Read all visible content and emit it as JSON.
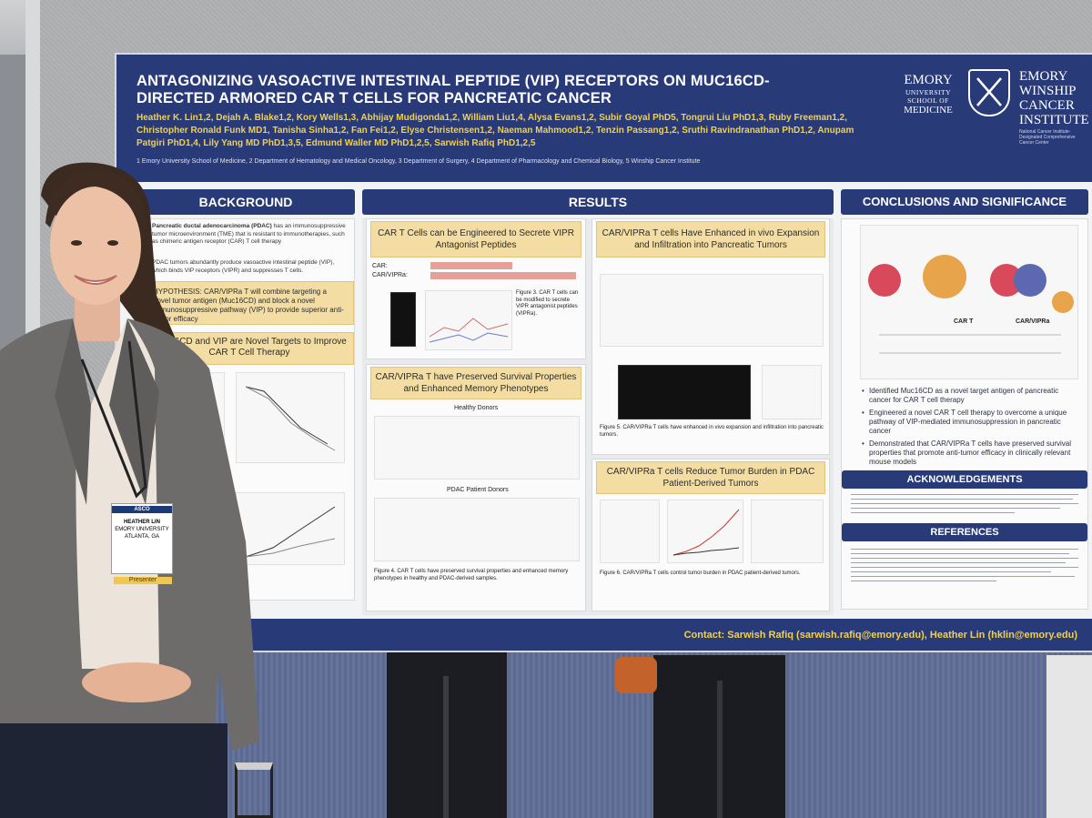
{
  "poster": {
    "title": "ANTAGONIZING VASOACTIVE INTESTINAL PEPTIDE (VIP) RECEPTORS ON MUC16CD-DIRECTED ARMORED CAR T CELLS FOR PANCREATIC CANCER",
    "authors": "Heather K. Lin1,2, Dejah A. Blake1,2, Kory Wells1,3, Abhijay Mudigonda1,2, William Liu1,4, Alysa Evans1,2, Subir Goyal PhD5, Tongrui Liu PhD1,3, Ruby Freeman1,2, Christopher Ronald Funk MD1, Tanisha Sinha1,2, Fan Fei1,2, Elyse Christensen1,2, Naeman Mahmood1,2, Tenzin Passang1,2, Sruthi Ravindranathan PhD1,2, Anupam Patgiri PhD1,4, Lily Yang MD PhD1,3,5, Edmund Waller MD PhD1,2,5, Sarwish Rafiq PhD1,2,5",
    "affiliations": "1 Emory University School of Medicine, 2 Department of Hematology and Medical Oncology, 3 Department of Surgery, 4 Department of Pharmacology and Chemical Biology, 5 Winship Cancer Institute",
    "logo_left": {
      "line1": "EMORY",
      "line2": "UNIVERSITY",
      "line3": "SCHOOL OF",
      "line4": "MEDICINE"
    },
    "logo_right": {
      "line1": "EMORY",
      "line2": "WINSHIP",
      "line3": "CANCER",
      "line4": "INSTITUTE",
      "tagline": "National Cancer Institute-Designated Comprehensive Cancer Center"
    },
    "sections": {
      "background": "BACKGROUND",
      "results": "RESULTS",
      "conclusions": "CONCLUSIONS AND SIGNIFICANCE",
      "acknowledgements": "ACKNOWLEDGEMENTS",
      "references": "REFERENCES"
    },
    "background": {
      "para1_bold": "Pancreatic ductal adenocarcinoma (PDAC)",
      "para1": "has an immunosuppressive tumor microenvironment (TME) that is resistant to immunotherapies, such as chimeric antigen receptor (CAR) T cell therapy",
      "para2": "PDAC tumors abundantly produce vasoactive intestinal peptide (VIP), which binds VIP receptors (VIPR) and suppresses T cells.",
      "hypothesis": "HYPOTHESIS: CAR/VIPRa T will combine targeting a novel tumor antigen (Muc16CD) and block a novel immunosuppressive pathway (VIP) to provide superior anti-tumor efficacy",
      "subhead": "Muc16CD and VIP are Novel Targets to Improve CAR T Cell Therapy"
    },
    "results": {
      "panel1": "CAR T Cells can be Engineered to Secrete VIPR Antagonist Peptides",
      "panel2": "CAR/VIPRa T have Preserved Survival Properties and Enhanced Memory Phenotypes",
      "panel2_sub1": "Healthy Donors",
      "panel2_sub2": "PDAC Patient Donors",
      "panel3": "CAR/VIPRa T cells Have Enhanced in vivo Expansion and Infiltration into Pancreatic Tumors",
      "panel4": "CAR/VIPRa T cells Reduce Tumor Burden in PDAC Patient-Derived Tumors",
      "construct_car": "CAR:",
      "construct_vipra": "CAR/VIPRa:",
      "fig4_caption": "Figure 4. CAR T cells have preserved survival properties and enhanced memory phenotypes in healthy and PDAC-derived samples.",
      "fig5_caption": "Figure 5. CAR/VIPRa T cells have enhanced in vivo expansion and infiltration into pancreatic tumors.",
      "fig6_caption": "Figure 6. CAR/VIPRa T cells control tumor burden in PDAC patient-derived tumors."
    },
    "conclusions": {
      "b1": "Identified Muc16CD as a novel target antigen of pancreatic cancer for CAR T cell therapy",
      "b2": "Engineered a novel CAR T cell therapy to overcome a unique pathway of VIP-mediated immunosuppression in pancreatic cancer",
      "b3": "Demonstrated that CAR/VIPRa T cells have preserved survival properties that promote anti-tumor efficacy in clinically relevant mouse models",
      "diagram_label1": "CAR T",
      "diagram_label2": "CAR/VIPRa"
    },
    "contact": "Contact: Sarwish Rafiq (sarwish.rafiq@emory.edu), Heather Lin (hklin@emory.edu)"
  },
  "badge": {
    "conf": "ASCO",
    "name": "HEATHER LIN",
    "org": "EMORY UNIVERSITY",
    "city": "ATLANTA, GA",
    "ribbon": "Presenter"
  },
  "colors": {
    "navy": "#283a78",
    "gold": "#f2d04a",
    "panel": "#f3dda3"
  }
}
